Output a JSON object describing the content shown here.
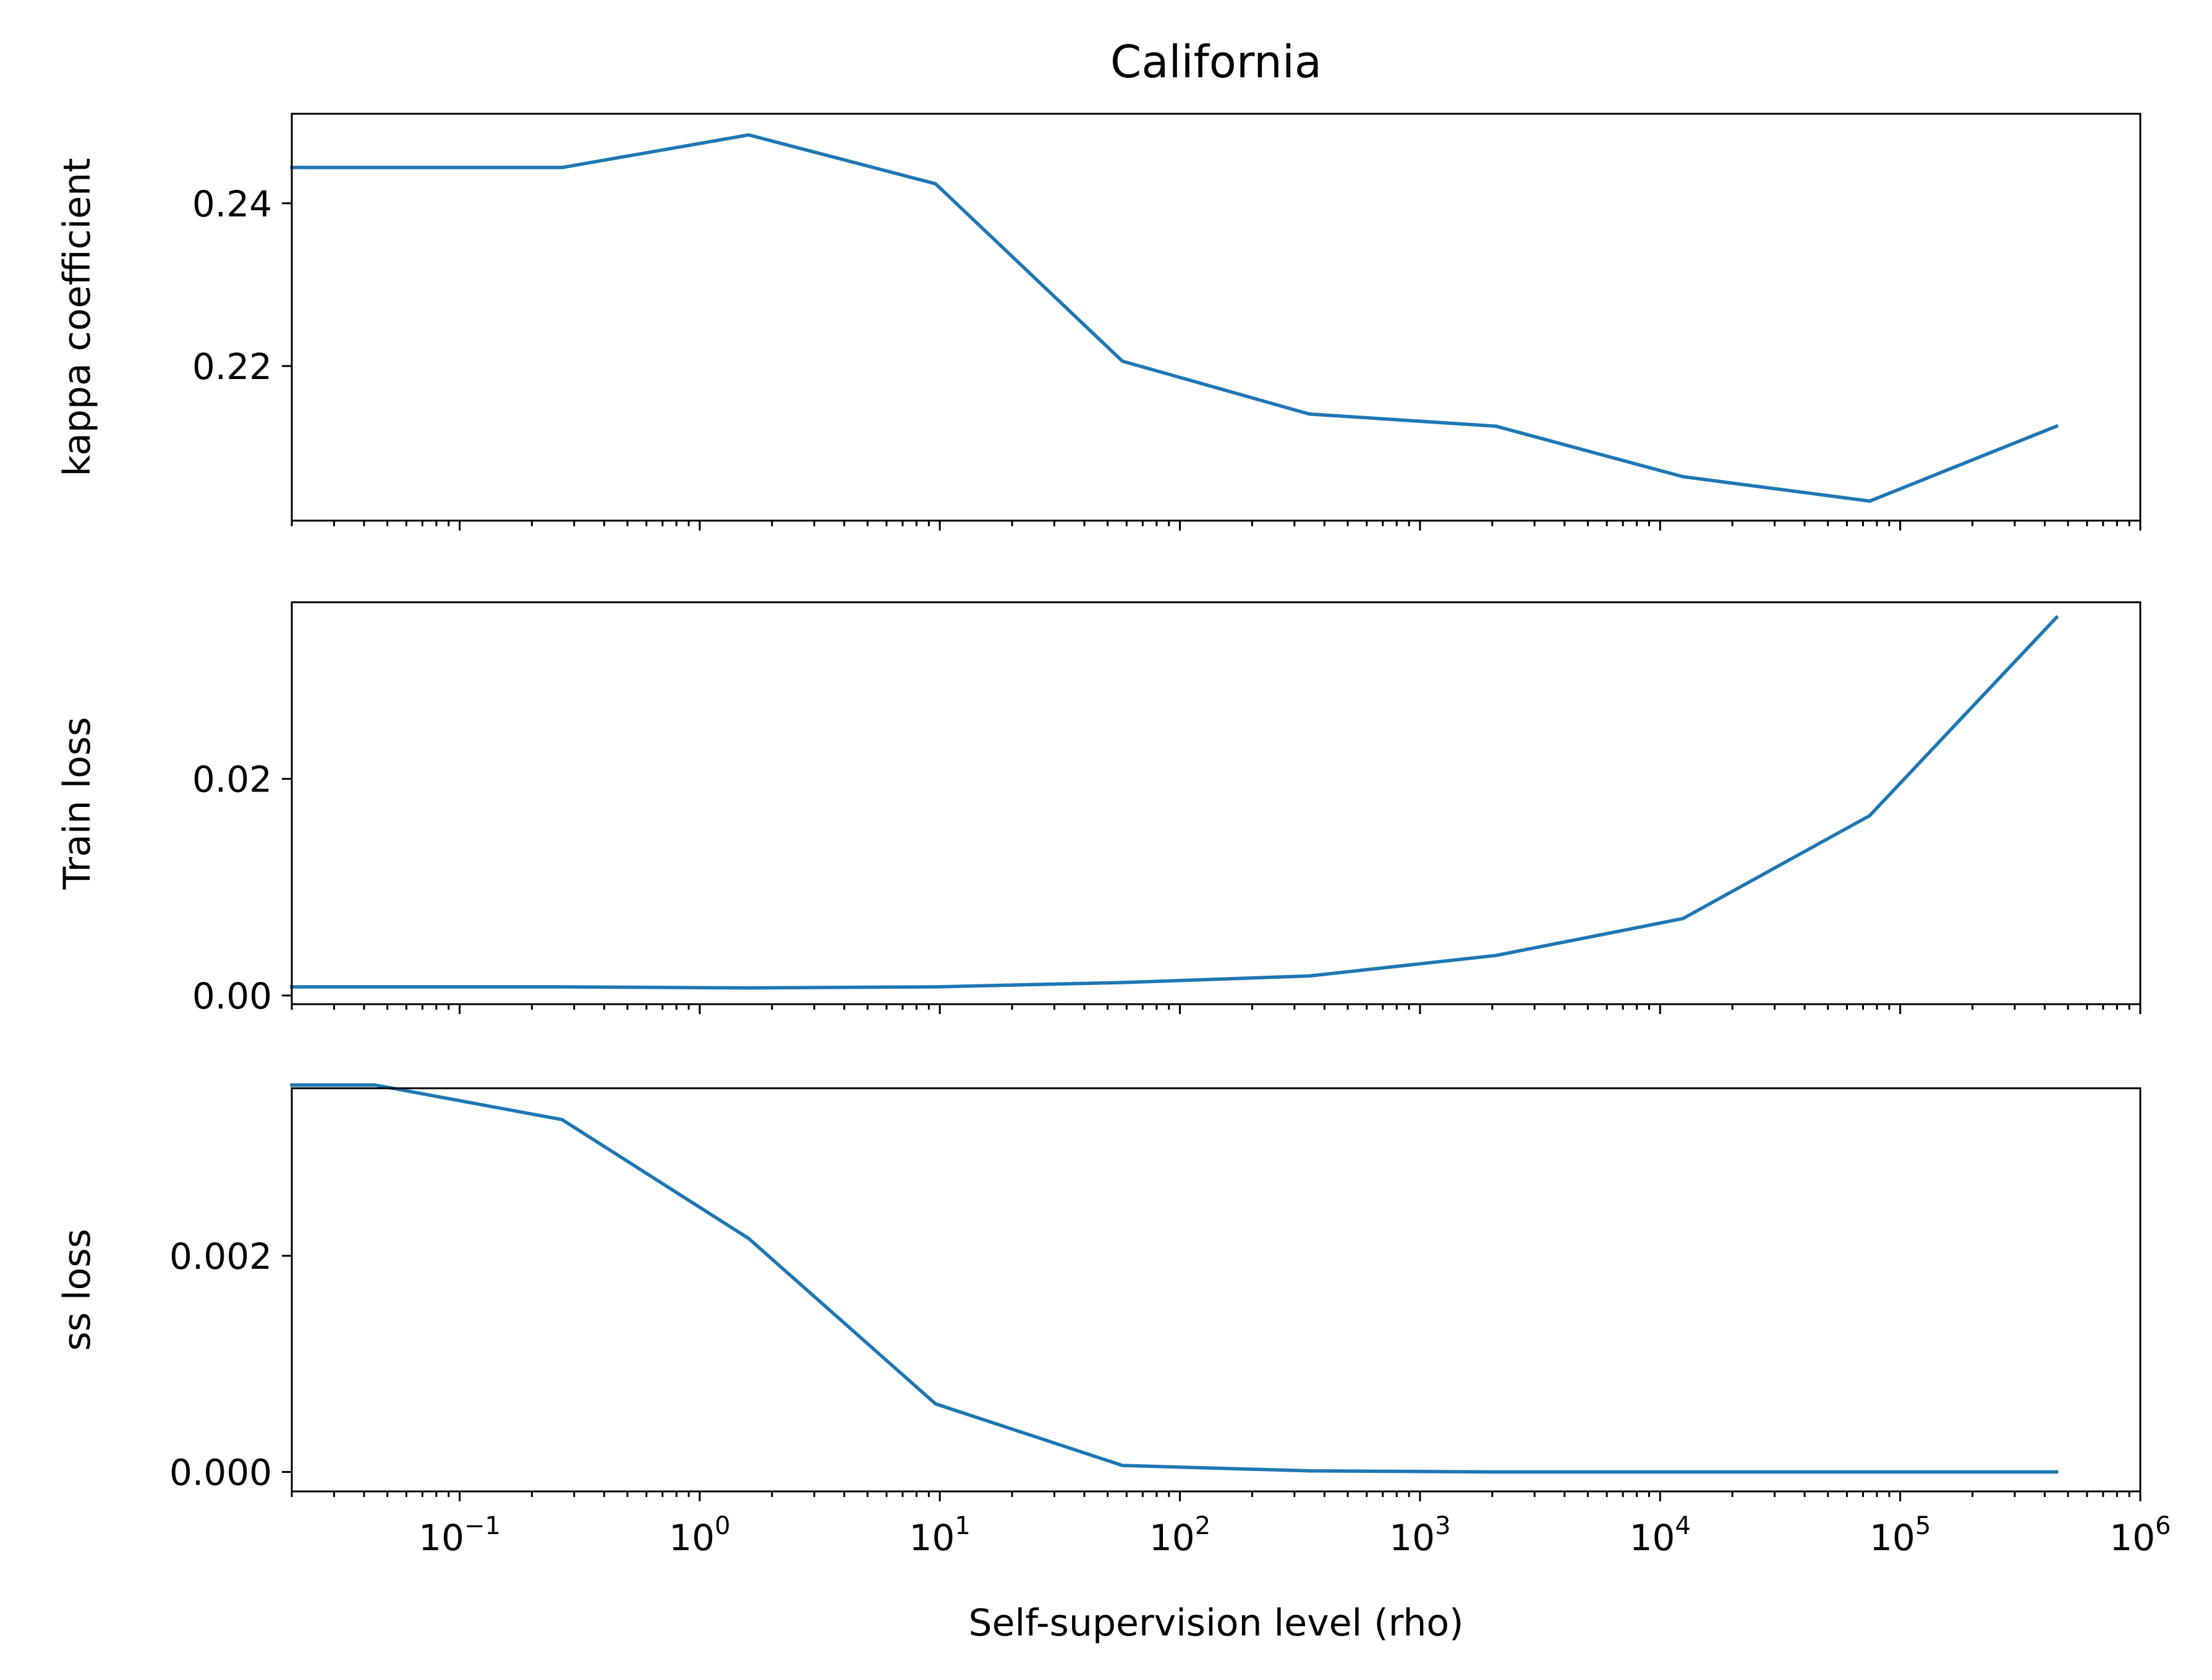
{
  "chart_data": {
    "type": "line",
    "title": "California",
    "xlabel": "Self-supervision level (rho)",
    "xscale": "log",
    "xlim": [
      0.02,
      1000000
    ],
    "x_tick_labels": [
      {
        "value": 0.1,
        "base": "10",
        "exp": "−1"
      },
      {
        "value": 1,
        "base": "10",
        "exp": "0"
      },
      {
        "value": 10,
        "base": "10",
        "exp": "1"
      },
      {
        "value": 100,
        "base": "10",
        "exp": "2"
      },
      {
        "value": 1000,
        "base": "10",
        "exp": "3"
      },
      {
        "value": 10000,
        "base": "10",
        "exp": "4"
      },
      {
        "value": 100000,
        "base": "10",
        "exp": "5"
      },
      {
        "value": 1000000,
        "base": "10",
        "exp": "6"
      }
    ],
    "line_color": "#1f77b4",
    "grid": false,
    "subplots": [
      {
        "ylabel": "kappa coefficient",
        "ylim": [
          0.201,
          0.251
        ],
        "y_ticks": [
          0.22,
          0.24
        ],
        "y_tick_labels": [
          "0.22",
          "0.24"
        ],
        "x": [
          0.02,
          0.267,
          1.6,
          9.6,
          57.6,
          346,
          2074,
          12442,
          74650,
          447900
        ],
        "y": [
          0.2444,
          0.2444,
          0.2484,
          0.2424,
          0.2206,
          0.2141,
          0.2126,
          0.2064,
          0.2034,
          0.2126
        ]
      },
      {
        "ylabel": "Train loss",
        "ylim": [
          -0.0008,
          0.0363
        ],
        "y_ticks": [
          0.0,
          0.02
        ],
        "y_tick_labels": [
          "0.00",
          "0.02"
        ],
        "x": [
          0.02,
          0.267,
          1.6,
          9.6,
          57.6,
          346,
          2074,
          12442,
          74650,
          447900
        ],
        "y": [
          0.0008,
          0.0008,
          0.0007,
          0.0008,
          0.0012,
          0.0018,
          0.0037,
          0.0071,
          0.0166,
          0.0349
        ]
      },
      {
        "ylabel": "ss loss",
        "ylim": [
          -0.00018,
          0.00355
        ],
        "y_ticks": [
          0.0,
          0.002
        ],
        "y_tick_labels": [
          "0.000",
          "0.002"
        ],
        "x": [
          0.02,
          0.0445,
          0.267,
          1.6,
          9.6,
          57.6,
          346,
          2074,
          12442,
          74650,
          447900
        ],
        "y": [
          0.00358,
          0.00358,
          0.00326,
          0.00216,
          0.00063,
          6e-05,
          1e-05,
          0.0,
          0.0,
          0.0,
          0.0
        ]
      }
    ]
  }
}
